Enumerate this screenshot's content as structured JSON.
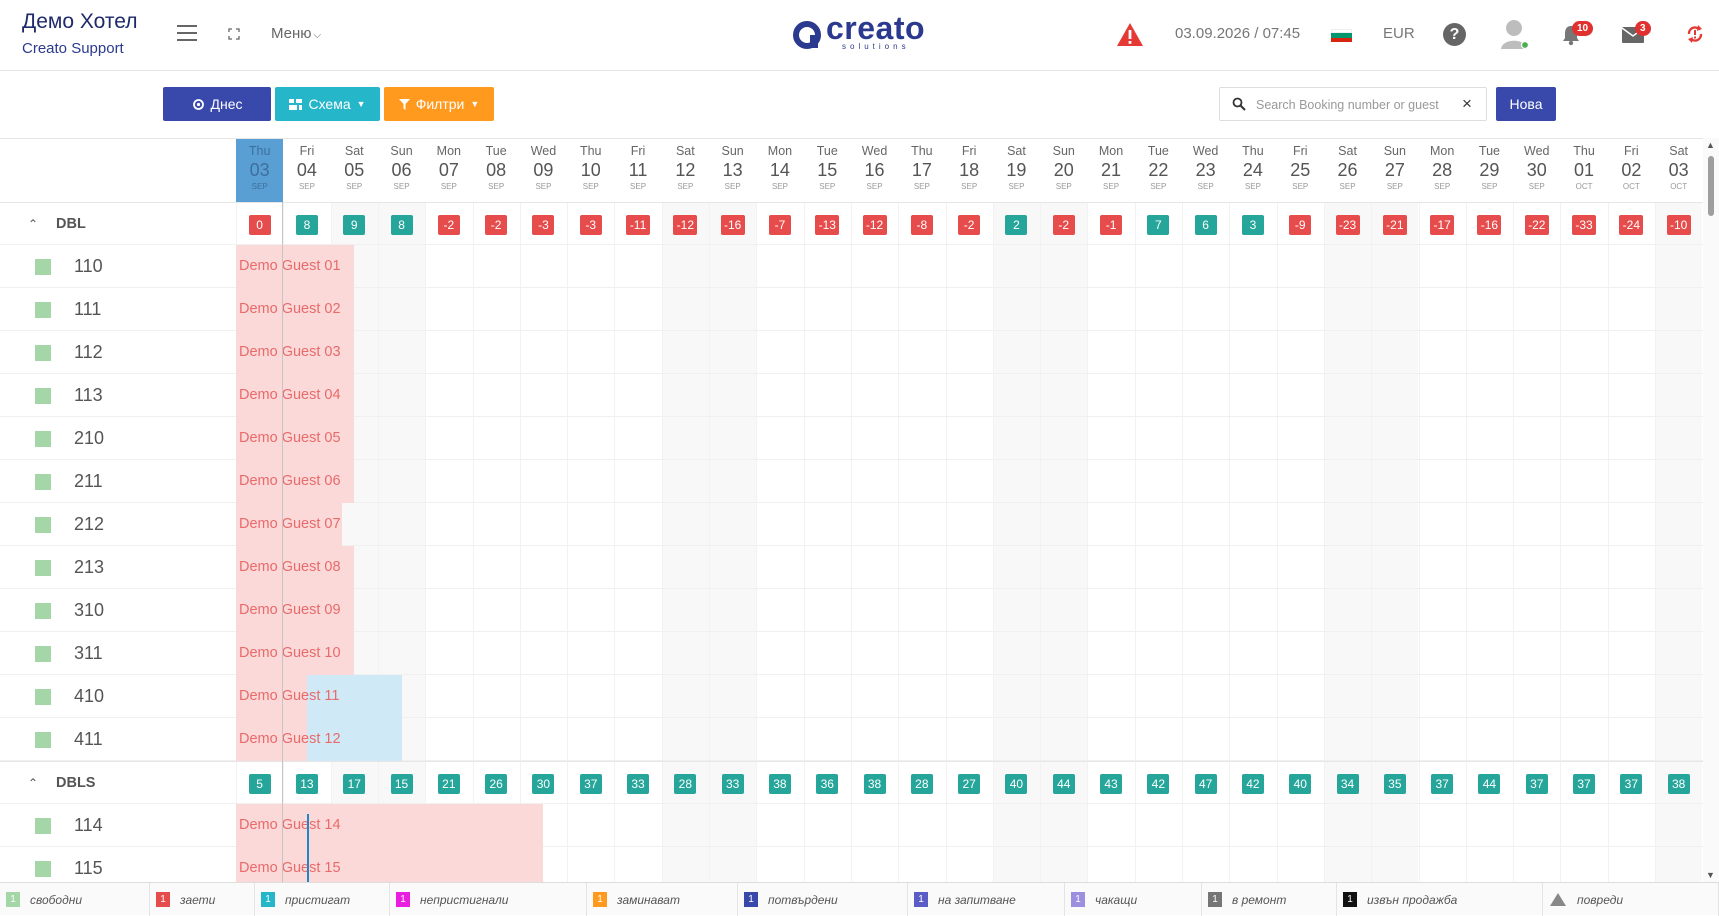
{
  "header": {
    "hotel_name": "Демо Хотел",
    "hotel_sub": "Creato Support",
    "menu_label": "Меню",
    "logo_text": "creato",
    "logo_sub": "solutions",
    "datetime": "03.09.2026 / 07:45",
    "currency": "EUR",
    "help_glyph": "?",
    "notifications_count": "10",
    "messages_count": "3",
    "accent_color": "#2b3a8e"
  },
  "toolbar": {
    "today_label": "Днес",
    "schema_label": "Схема",
    "filters_label": "Филтри",
    "search_placeholder": "Search Booking number or guest",
    "clear_glyph": "×",
    "new_label": "Нова"
  },
  "days": [
    {
      "dow": "Thu",
      "d": "03",
      "m": "SEP",
      "today": true
    },
    {
      "dow": "Fri",
      "d": "04",
      "m": "SEP"
    },
    {
      "dow": "Sat",
      "d": "05",
      "m": "SEP",
      "weekend": true
    },
    {
      "dow": "Sun",
      "d": "06",
      "m": "SEP",
      "weekend": true
    },
    {
      "dow": "Mon",
      "d": "07",
      "m": "SEP"
    },
    {
      "dow": "Tue",
      "d": "08",
      "m": "SEP"
    },
    {
      "dow": "Wed",
      "d": "09",
      "m": "SEP"
    },
    {
      "dow": "Thu",
      "d": "10",
      "m": "SEP"
    },
    {
      "dow": "Fri",
      "d": "11",
      "m": "SEP"
    },
    {
      "dow": "Sat",
      "d": "12",
      "m": "SEP",
      "weekend": true
    },
    {
      "dow": "Sun",
      "d": "13",
      "m": "SEP",
      "weekend": true
    },
    {
      "dow": "Mon",
      "d": "14",
      "m": "SEP"
    },
    {
      "dow": "Tue",
      "d": "15",
      "m": "SEP"
    },
    {
      "dow": "Wed",
      "d": "16",
      "m": "SEP"
    },
    {
      "dow": "Thu",
      "d": "17",
      "m": "SEP"
    },
    {
      "dow": "Fri",
      "d": "18",
      "m": "SEP"
    },
    {
      "dow": "Sat",
      "d": "19",
      "m": "SEP",
      "weekend": true
    },
    {
      "dow": "Sun",
      "d": "20",
      "m": "SEP",
      "weekend": true
    },
    {
      "dow": "Mon",
      "d": "21",
      "m": "SEP"
    },
    {
      "dow": "Tue",
      "d": "22",
      "m": "SEP"
    },
    {
      "dow": "Wed",
      "d": "23",
      "m": "SEP"
    },
    {
      "dow": "Thu",
      "d": "24",
      "m": "SEP"
    },
    {
      "dow": "Fri",
      "d": "25",
      "m": "SEP"
    },
    {
      "dow": "Sat",
      "d": "26",
      "m": "SEP",
      "weekend": true
    },
    {
      "dow": "Sun",
      "d": "27",
      "m": "SEP",
      "weekend": true
    },
    {
      "dow": "Mon",
      "d": "28",
      "m": "SEP"
    },
    {
      "dow": "Tue",
      "d": "29",
      "m": "SEP"
    },
    {
      "dow": "Wed",
      "d": "30",
      "m": "SEP"
    },
    {
      "dow": "Thu",
      "d": "01",
      "m": "OCT"
    },
    {
      "dow": "Fri",
      "d": "02",
      "m": "OCT"
    },
    {
      "dow": "Sat",
      "d": "03",
      "m": "OCT",
      "weekend": true
    }
  ],
  "groups": [
    {
      "name": "DBL",
      "availability": [
        0,
        8,
        9,
        8,
        -2,
        -2,
        -3,
        -3,
        -11,
        -12,
        -16,
        -7,
        -13,
        -12,
        -8,
        -2,
        2,
        -2,
        -1,
        7,
        6,
        3,
        -9,
        -23,
        -21,
        -17,
        -16,
        -22,
        -33,
        -24,
        -10
      ],
      "rooms": [
        {
          "num": "110",
          "booking": {
            "guest": "Demo Guest 01",
            "color": "red",
            "nights": 2.5
          }
        },
        {
          "num": "111",
          "booking": {
            "guest": "Demo Guest 02",
            "color": "red",
            "nights": 2.5
          }
        },
        {
          "num": "112",
          "booking": {
            "guest": "Demo Guest 03",
            "color": "red",
            "nights": 2.5
          }
        },
        {
          "num": "113",
          "booking": {
            "guest": "Demo Guest 04",
            "color": "red",
            "nights": 2.5
          }
        },
        {
          "num": "210",
          "booking": {
            "guest": "Demo Guest 05",
            "color": "red",
            "nights": 2.5
          }
        },
        {
          "num": "211",
          "booking": {
            "guest": "Demo Guest 06",
            "color": "red",
            "nights": 2.5
          }
        },
        {
          "num": "212",
          "booking": {
            "guest": "Demo Guest 07",
            "color": "red",
            "nights": 2.25
          }
        },
        {
          "num": "213",
          "booking": {
            "guest": "Demo Guest 08",
            "color": "red",
            "nights": 2.5
          }
        },
        {
          "num": "310",
          "booking": {
            "guest": "Demo Guest 09",
            "color": "red",
            "nights": 2.5
          }
        },
        {
          "num": "311",
          "booking": {
            "guest": "Demo Guest 10",
            "color": "red",
            "nights": 2.5
          }
        },
        {
          "num": "410",
          "booking": {
            "guest": "Demo Guest 11",
            "color": "red",
            "nights": 1.5
          },
          "booking2": {
            "color": "blue",
            "start": 1.5,
            "nights": 2
          }
        },
        {
          "num": "411",
          "booking": {
            "guest": "Demo Guest 12",
            "color": "red",
            "nights": 1.5
          },
          "booking2": {
            "color": "blue",
            "start": 1.5,
            "nights": 2
          }
        }
      ]
    },
    {
      "name": "DBLS",
      "availability": [
        5,
        13,
        17,
        15,
        21,
        26,
        30,
        37,
        33,
        28,
        33,
        38,
        36,
        38,
        28,
        27,
        40,
        44,
        43,
        42,
        47,
        42,
        40,
        34,
        35,
        37,
        44,
        37,
        37,
        37,
        38
      ],
      "rooms": [
        {
          "num": "114",
          "booking": {
            "guest": "Demo Guest 14",
            "color": "red",
            "nights": 6.5
          }
        },
        {
          "num": "115",
          "booking": {
            "guest": "Demo Guest 15",
            "color": "red",
            "nights": 6.5
          }
        }
      ]
    }
  ],
  "legend": [
    {
      "count": "1",
      "label": "свободни",
      "color": "#a5d6a7"
    },
    {
      "count": "1",
      "label": "заети",
      "color": "#e74c4c"
    },
    {
      "count": "1",
      "label": "пристигат",
      "color": "#26b6c9"
    },
    {
      "count": "1",
      "label": "непристигнали",
      "color": "#e91ee0"
    },
    {
      "count": "1",
      "label": "заминават",
      "color": "#ff9a1f"
    },
    {
      "count": "1",
      "label": "потвърдени",
      "color": "#3949ab"
    },
    {
      "count": "1",
      "label": "на запитване",
      "color": "#5c5cc7"
    },
    {
      "count": "1",
      "label": "чакащи",
      "color": "#9c8fe0"
    },
    {
      "count": "1",
      "label": "в ремонт",
      "color": "#757575"
    },
    {
      "count": "1",
      "label": "извън продажба",
      "color": "#111111"
    },
    {
      "count": "",
      "label": "повреди",
      "color": "#888888",
      "icon": "warning-triangle-icon"
    }
  ]
}
